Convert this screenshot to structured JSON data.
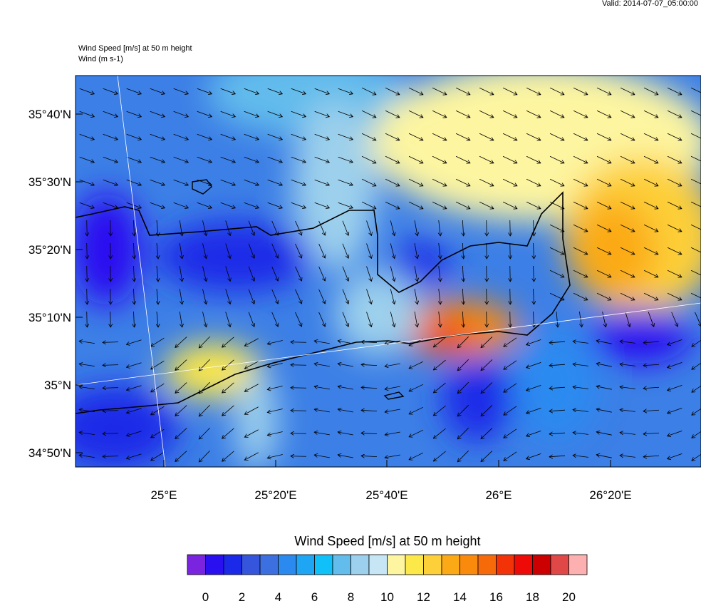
{
  "header": {
    "valid": "Valid: 2014-07-07_05:00:00"
  },
  "map": {
    "title": "Wind Speed [m/s] at 50 m height",
    "subtitle": "Wind   (m s-1)",
    "lat_labels": [
      "35°40'N",
      "35°30'N",
      "35°20'N",
      "35°10'N",
      "35°N",
      "34°50'N"
    ],
    "lon_labels": [
      "25°E",
      "25°20'E",
      "25°40'E",
      "26°E",
      "26°20'E"
    ]
  },
  "colorbar": {
    "title": "Wind Speed [m/s] at 50 m height",
    "labels": [
      0,
      2,
      4,
      6,
      8,
      10,
      12,
      14,
      16,
      18,
      20
    ],
    "colors": [
      "#7b24e0",
      "#2a10f0",
      "#1a2ae8",
      "#3556dc",
      "#3c6fe0",
      "#2a8af0",
      "#1ea6f5",
      "#10c0f8",
      "#62bcec",
      "#9cd0ec",
      "#c6e6f6",
      "#fdf5a0",
      "#fde84a",
      "#fdcf38",
      "#fbaa16",
      "#f98a0c",
      "#f76a0a",
      "#f33208",
      "#ee0a06",
      "#cc0000",
      "#e04848",
      "#fcb0b0"
    ]
  }
}
